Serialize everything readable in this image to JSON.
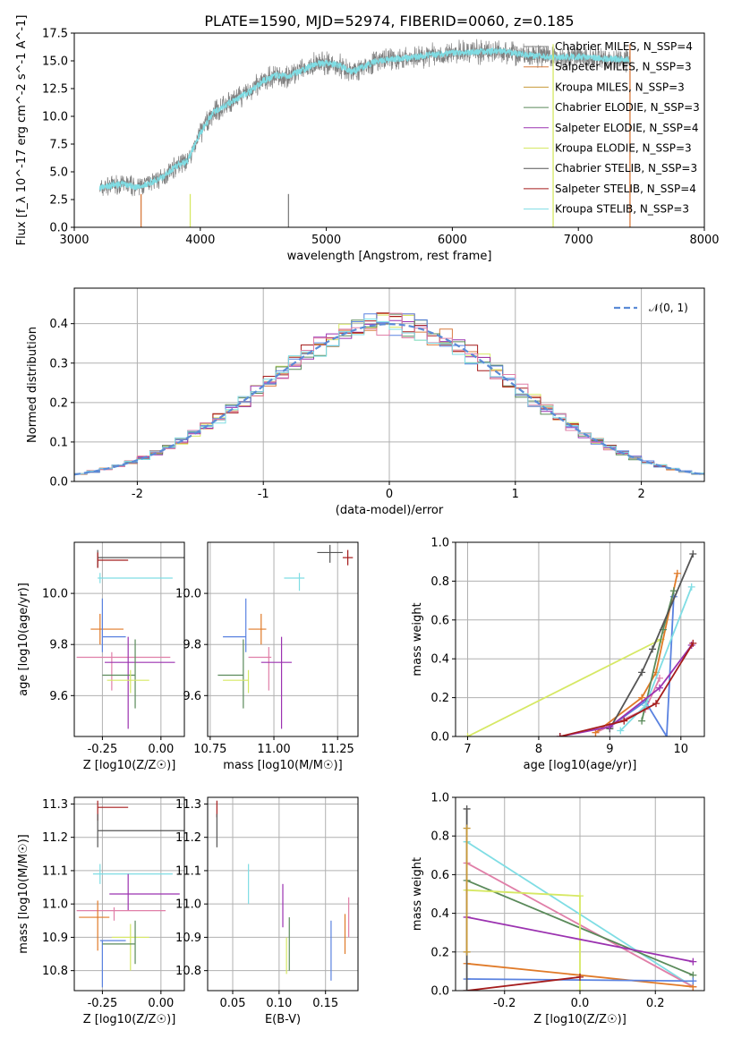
{
  "figure": {
    "title": "PLATE=1590, MJD=52974, FIBERID=0060, z=0.185"
  },
  "colors": {
    "Chabrier MILES": "#7f7f7f",
    "Salpeter MILES": "#d97b3f",
    "Kroupa MILES": "#c89a3a",
    "Chabrier ELODIE": "#5a8a5a",
    "Salpeter ELODIE": "#9b32b0",
    "Kroupa ELODIE": "#d6e864",
    "Chabrier STELIB": "#555555",
    "Salpeter STELIB": "#a51c1c",
    "Kroupa STELIB": "#7fdde4",
    "pink": "#e07fa8",
    "orange": "#e07a28",
    "blue": "#5a82e0",
    "normal": "#5b8bd6",
    "grid": "#b0b0b0"
  },
  "chart_data": [
    {
      "type": "line",
      "id": "spectrum",
      "title": "PLATE=1590, MJD=52974, FIBERID=0060, z=0.185",
      "xlabel": "wavelength [Angstrom, rest frame]",
      "ylabel": "Flux [f_λ 10^-17 erg cm^-2 s^-1 A^-1]",
      "xlim": [
        3000,
        8000
      ],
      "ylim": [
        0,
        17.5
      ],
      "xticks": [
        3000,
        4000,
        5000,
        6000,
        7000,
        8000
      ],
      "yticks": [
        0.0,
        2.5,
        5.0,
        7.5,
        10.0,
        12.5,
        15.0,
        17.5
      ],
      "legend_position": "top-right",
      "legend": [
        "Chabrier MILES, N_SSP=4",
        "Salpeter MILES, N_SSP=3",
        "Kroupa MILES, N_SSP=3",
        "Chabrier ELODIE, N_SSP=3",
        "Salpeter ELODIE, N_SSP=4",
        "Kroupa ELODIE, N_SSP=3",
        "Chabrier STELIB, N_SSP=3",
        "Salpeter STELIB, N_SSP=4",
        "Kroupa STELIB, N_SSP=3"
      ],
      "data_range": [
        3200,
        7410
      ],
      "continuum": {
        "x": [
          3200,
          3300,
          3400,
          3500,
          3600,
          3700,
          3800,
          3900,
          4000,
          4100,
          4200,
          4300,
          4400,
          4500,
          4600,
          4700,
          4800,
          4900,
          5000,
          5100,
          5200,
          5400,
          5600,
          5800,
          6000,
          6200,
          6400,
          6600,
          6800,
          7000,
          7200,
          7400
        ],
        "y": [
          3.5,
          3.8,
          3.9,
          3.6,
          4.0,
          4.5,
          5.5,
          6.0,
          8.5,
          10.3,
          11.0,
          11.6,
          12.3,
          13.2,
          13.7,
          13.6,
          14.1,
          14.7,
          14.8,
          14.6,
          14.0,
          15.0,
          15.2,
          15.5,
          15.7,
          15.8,
          15.9,
          15.5,
          15.3,
          15.4,
          15.2,
          15.1
        ]
      }
    },
    {
      "type": "histogram",
      "id": "residuals",
      "xlabel": "(data-model)/error",
      "ylabel": "Normed distribution",
      "xlim": [
        -2.5,
        2.5
      ],
      "ylim": [
        0,
        0.49
      ],
      "xticks": [
        -2,
        -1,
        0,
        1,
        2
      ],
      "yticks": [
        0.0,
        0.1,
        0.2,
        0.3,
        0.4
      ],
      "legend": [
        "𝒩(0, 1)"
      ],
      "legend_position": "top-right",
      "bin_width": 0.1
    },
    {
      "type": "scatter",
      "id": "age_vs_Z",
      "xlabel": "Z [log10(Z/Z☉)]",
      "ylabel": "age [log10(age/yr)]",
      "xlim": [
        -0.37,
        0.1
      ],
      "ylim": [
        9.44,
        10.2
      ],
      "xticks": [
        -0.25,
        0.0
      ],
      "yticks": [
        9.6,
        9.8,
        10.0
      ],
      "points": [
        {
          "x": -0.27,
          "y": 10.14,
          "xerr": [
            0.0,
            0.38
          ],
          "yerr": [
            0.04,
            0.03
          ],
          "c": "Chabrier STELIB"
        },
        {
          "x": -0.27,
          "y": 10.13,
          "xerr": [
            0.0,
            0.13
          ],
          "yerr": [
            0.03,
            0.03
          ],
          "c": "Salpeter STELIB"
        },
        {
          "x": -0.26,
          "y": 10.06,
          "xerr": [
            0.01,
            0.31
          ],
          "yerr": [
            0.02,
            0.02
          ],
          "c": "Kroupa STELIB"
        },
        {
          "x": -0.26,
          "y": 9.86,
          "xerr": [
            0.04,
            0.1
          ],
          "yerr": [
            0.06,
            0.06
          ],
          "c": "orange"
        },
        {
          "x": -0.25,
          "y": 9.83,
          "xerr": [
            0.0,
            0.1
          ],
          "yerr": [
            0.06,
            0.15
          ],
          "c": "blue"
        },
        {
          "x": -0.21,
          "y": 9.75,
          "xerr": [
            0.15,
            0.25
          ],
          "yerr": [
            0.13,
            0.02
          ],
          "c": "pink"
        },
        {
          "x": -0.14,
          "y": 9.73,
          "xerr": [
            0.1,
            0.2
          ],
          "yerr": [
            0.26,
            0.1
          ],
          "c": "Salpeter ELODIE"
        },
        {
          "x": -0.11,
          "y": 9.68,
          "xerr": [
            0.14,
            0.0
          ],
          "yerr": [
            0.13,
            0.14
          ],
          "c": "Chabrier ELODIE"
        },
        {
          "x": -0.13,
          "y": 9.66,
          "xerr": [
            0.1,
            0.08
          ],
          "yerr": [
            0.05,
            0.04
          ],
          "c": "Kroupa ELODIE"
        }
      ]
    },
    {
      "type": "scatter",
      "id": "age_vs_mass",
      "xlabel": "mass [log10(M/M☉)]",
      "ylabel": "",
      "xlim": [
        10.74,
        11.33
      ],
      "ylim": [
        9.44,
        10.2
      ],
      "xticks": [
        10.75,
        11.0,
        11.25
      ],
      "yticks": [
        9.6,
        9.8,
        10.0
      ],
      "points": [
        {
          "x": 11.22,
          "y": 10.16,
          "xerr": [
            0.05,
            0.05
          ],
          "yerr": [
            0.04,
            0.03
          ],
          "c": "Chabrier STELIB"
        },
        {
          "x": 11.29,
          "y": 10.14,
          "xerr": [
            0.02,
            0.02
          ],
          "yerr": [
            0.03,
            0.03
          ],
          "c": "Salpeter STELIB"
        },
        {
          "x": 11.1,
          "y": 10.06,
          "xerr": [
            0.06,
            0.02
          ],
          "yerr": [
            0.05,
            0.02
          ],
          "c": "Kroupa STELIB"
        },
        {
          "x": 10.95,
          "y": 9.86,
          "xerr": [
            0.05,
            0.02
          ],
          "yerr": [
            0.06,
            0.06
          ],
          "c": "orange"
        },
        {
          "x": 10.89,
          "y": 9.83,
          "xerr": [
            0.09,
            0.0
          ],
          "yerr": [
            0.06,
            0.15
          ],
          "c": "blue"
        },
        {
          "x": 10.98,
          "y": 9.75,
          "xerr": [
            0.08,
            0.01
          ],
          "yerr": [
            0.13,
            0.04
          ],
          "c": "pink"
        },
        {
          "x": 11.03,
          "y": 9.73,
          "xerr": [
            0.08,
            0.04
          ],
          "yerr": [
            0.26,
            0.1
          ],
          "c": "Salpeter ELODIE"
        },
        {
          "x": 10.88,
          "y": 9.68,
          "xerr": [
            0.1,
            0.0
          ],
          "yerr": [
            0.13,
            0.14
          ],
          "c": "Chabrier ELODIE"
        },
        {
          "x": 10.9,
          "y": 9.66,
          "xerr": [
            0.1,
            0.0
          ],
          "yerr": [
            0.05,
            0.04
          ],
          "c": "Kroupa ELODIE"
        }
      ]
    },
    {
      "type": "line",
      "id": "massweight_vs_age",
      "xlabel": "age [log10(age/yr)]",
      "ylabel": "mass weight",
      "xlim": [
        6.83,
        10.33
      ],
      "ylim": [
        0,
        1
      ],
      "xticks": [
        7,
        8,
        9,
        10
      ],
      "yticks": [
        0.0,
        0.2,
        0.4,
        0.6,
        0.8,
        1.0
      ],
      "series": [
        {
          "c": "Kroupa ELODIE",
          "x": [
            7.0,
            9.72
          ],
          "y": [
            0.0,
            0.5
          ]
        },
        {
          "c": "pink",
          "x": [
            8.8,
            9.5,
            9.7
          ],
          "y": [
            0.02,
            0.14,
            0.3
          ]
        },
        {
          "c": "orange",
          "x": [
            8.8,
            9.45,
            9.65,
            9.95
          ],
          "y": [
            0.02,
            0.2,
            0.33,
            0.84
          ]
        },
        {
          "c": "blue",
          "x": [
            9.0,
            9.5,
            9.8,
            9.9
          ],
          "y": [
            0.05,
            0.18,
            0.0,
            0.72
          ]
        },
        {
          "c": "Chabrier ELODIE",
          "x": [
            9.45,
            9.75,
            9.9
          ],
          "y": [
            0.08,
            0.55,
            0.75
          ]
        },
        {
          "c": "Kroupa STELIB",
          "x": [
            9.15,
            9.5,
            10.15
          ],
          "y": [
            0.03,
            0.16,
            0.77
          ]
        },
        {
          "c": "Chabrier STELIB",
          "x": [
            9.0,
            9.45,
            9.6,
            10.17
          ],
          "y": [
            0.04,
            0.33,
            0.45,
            0.94
          ]
        },
        {
          "c": "Salpeter ELODIE",
          "x": [
            8.3,
            9.0,
            9.7,
            10.15
          ],
          "y": [
            0.0,
            0.05,
            0.25,
            0.47
          ]
        },
        {
          "c": "Salpeter STELIB",
          "x": [
            8.3,
            9.2,
            9.65,
            10.17
          ],
          "y": [
            0.0,
            0.08,
            0.17,
            0.48
          ]
        }
      ]
    },
    {
      "type": "scatter",
      "id": "mass_vs_Z",
      "xlabel": "Z [log10(Z/Z☉)]",
      "ylabel": "mass [log10(M/M☉)]",
      "xlim": [
        -0.37,
        0.1
      ],
      "ylim": [
        10.74,
        11.32
      ],
      "xticks": [
        -0.25,
        0.0
      ],
      "yticks": [
        10.8,
        10.9,
        11.0,
        11.1,
        11.2,
        11.3
      ],
      "points": [
        {
          "x": -0.27,
          "y": 11.29,
          "xerr": [
            0.0,
            0.13
          ],
          "yerr": [
            0.04,
            0.02
          ],
          "c": "Salpeter STELIB"
        },
        {
          "x": -0.27,
          "y": 11.22,
          "xerr": [
            0.0,
            0.38
          ],
          "yerr": [
            0.05,
            0.05
          ],
          "c": "Chabrier STELIB"
        },
        {
          "x": -0.26,
          "y": 11.09,
          "xerr": [
            0.03,
            0.31
          ],
          "yerr": [
            0.03,
            0.03
          ],
          "c": "Kroupa STELIB"
        },
        {
          "x": -0.14,
          "y": 11.03,
          "xerr": [
            0.08,
            0.22
          ],
          "yerr": [
            0.05,
            0.06
          ],
          "c": "Salpeter ELODIE"
        },
        {
          "x": -0.2,
          "y": 10.98,
          "xerr": [
            0.16,
            0.22
          ],
          "yerr": [
            0.03,
            0.01
          ],
          "c": "pink"
        },
        {
          "x": -0.27,
          "y": 10.96,
          "xerr": [
            0.08,
            0.05
          ],
          "yerr": [
            0.1,
            0.05
          ],
          "c": "orange"
        },
        {
          "x": -0.13,
          "y": 10.9,
          "xerr": [
            0.08,
            0.08
          ],
          "yerr": [
            0.1,
            0.04
          ],
          "c": "Kroupa ELODIE"
        },
        {
          "x": -0.25,
          "y": 10.89,
          "xerr": [
            0.01,
            0.1
          ],
          "yerr": [
            0.14,
            0.0
          ],
          "c": "blue"
        },
        {
          "x": -0.11,
          "y": 10.88,
          "xerr": [
            0.14,
            0.0
          ],
          "yerr": [
            0.06,
            0.07
          ],
          "c": "Chabrier ELODIE"
        }
      ]
    },
    {
      "type": "scatter",
      "id": "mass_vs_EBV",
      "xlabel": "E(B-V)",
      "ylabel": "",
      "xlim": [
        0.023,
        0.185
      ],
      "ylim": [
        10.74,
        11.32
      ],
      "xticks": [
        0.05,
        0.1,
        0.15
      ],
      "yticks": [
        10.8,
        10.9,
        11.0,
        11.1,
        11.2,
        11.3
      ],
      "points": [
        {
          "x": 0.033,
          "y": 11.29,
          "yerr": [
            0.03,
            0.02
          ],
          "c": "Salpeter STELIB"
        },
        {
          "x": 0.033,
          "y": 11.22,
          "yerr": [
            0.05,
            0.05
          ],
          "c": "Chabrier STELIB"
        },
        {
          "x": 0.067,
          "y": 11.06,
          "yerr": [
            0.06,
            0.06
          ],
          "c": "Kroupa STELIB"
        },
        {
          "x": 0.104,
          "y": 11.0,
          "yerr": [
            0.07,
            0.06
          ],
          "c": "Salpeter ELODIE"
        },
        {
          "x": 0.108,
          "y": 10.87,
          "yerr": [
            0.08,
            0.03
          ],
          "c": "Kroupa ELODIE"
        },
        {
          "x": 0.111,
          "y": 10.88,
          "yerr": [
            0.08,
            0.08
          ],
          "c": "Chabrier ELODIE"
        },
        {
          "x": 0.156,
          "y": 10.87,
          "yerr": [
            0.1,
            0.08
          ],
          "c": "blue"
        },
        {
          "x": 0.171,
          "y": 10.92,
          "yerr": [
            0.07,
            0.05
          ],
          "c": "orange"
        },
        {
          "x": 0.175,
          "y": 10.98,
          "yerr": [
            0.08,
            0.04
          ],
          "c": "pink"
        }
      ]
    },
    {
      "type": "line",
      "id": "massweight_vs_Z",
      "xlabel": "Z [log10(Z/Z☉)]",
      "ylabel": "mass weight",
      "xlim": [
        -0.33,
        0.33
      ],
      "ylim": [
        0,
        1
      ],
      "xticks": [
        -0.2,
        0.0,
        0.2
      ],
      "yticks": [
        0.0,
        0.2,
        0.4,
        0.6,
        0.8,
        1.0
      ],
      "series": [
        {
          "c": "Kroupa STELIB",
          "x": [
            -0.3,
            0.3
          ],
          "y": [
            0.77,
            0.02
          ]
        },
        {
          "c": "pink",
          "x": [
            -0.3,
            0.3
          ],
          "y": [
            0.66,
            0.02
          ]
        },
        {
          "c": "Chabrier ELODIE",
          "x": [
            -0.3,
            0.3
          ],
          "y": [
            0.57,
            0.08
          ]
        },
        {
          "c": "Kroupa ELODIE",
          "x": [
            -0.3,
            0.0,
            0.0
          ],
          "y": [
            0.52,
            0.49,
            0.0
          ]
        },
        {
          "c": "Salpeter ELODIE",
          "x": [
            -0.3,
            0.3
          ],
          "y": [
            0.38,
            0.15
          ]
        },
        {
          "c": "orange",
          "x": [
            -0.3,
            0.3
          ],
          "y": [
            0.14,
            0.02
          ]
        },
        {
          "c": "blue",
          "x": [
            -0.3,
            0.3
          ],
          "y": [
            0.06,
            0.05
          ]
        },
        {
          "c": "Salpeter STELIB",
          "x": [
            -0.3,
            0.0
          ],
          "y": [
            0.0,
            0.07
          ]
        },
        {
          "c": "Chabrier STELIB",
          "x": [
            -0.3,
            -0.3
          ],
          "y": [
            0.0,
            0.94
          ]
        },
        {
          "c": "Kroupa MILES",
          "x": [
            -0.3,
            -0.3
          ],
          "y": [
            0.2,
            0.84
          ]
        }
      ]
    }
  ]
}
